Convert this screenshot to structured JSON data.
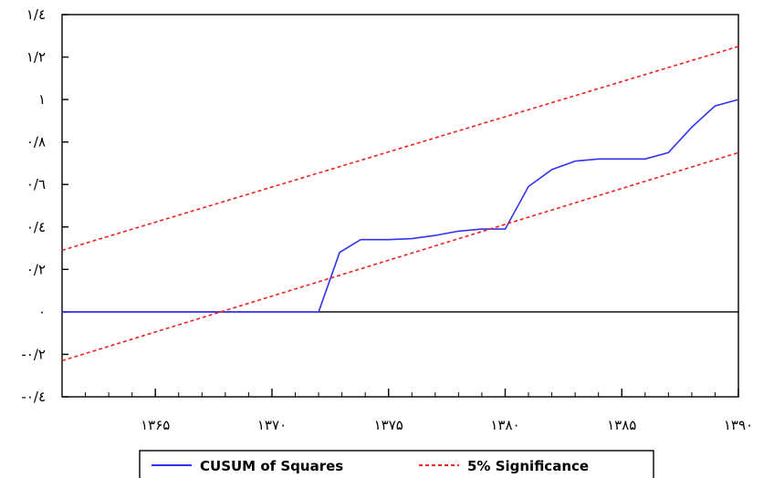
{
  "chart_data": {
    "type": "line",
    "title": "",
    "xlabel": "",
    "ylabel": "",
    "xlim": [
      1361,
      1390
    ],
    "ylim": [
      -0.4,
      1.4
    ],
    "x_ticks": [
      {
        "value": 1365,
        "label": "۱۳۶۵"
      },
      {
        "value": 1370,
        "label": "۱۳۷۰"
      },
      {
        "value": 1375,
        "label": "۱۳۷۵"
      },
      {
        "value": 1380,
        "label": "۱۳۸۰"
      },
      {
        "value": 1385,
        "label": "۱۳۸۵"
      },
      {
        "value": 1390,
        "label": "۱۳۹۰"
      }
    ],
    "y_ticks": [
      {
        "value": 1.4,
        "label": "۱/٤"
      },
      {
        "value": 1.2,
        "label": "۱/۲"
      },
      {
        "value": 1.0,
        "label": "۱"
      },
      {
        "value": 0.8,
        "label": "۰/۸"
      },
      {
        "value": 0.6,
        "label": "۰/٦"
      },
      {
        "value": 0.4,
        "label": "۰/٤"
      },
      {
        "value": 0.2,
        "label": "۰/۲"
      },
      {
        "value": 0.0,
        "label": "۰"
      },
      {
        "value": -0.2,
        "label": "-۰/۲"
      },
      {
        "value": -0.4,
        "label": "-۰/٤"
      }
    ],
    "zero_line": true,
    "grid": false,
    "legend_position": "bottom",
    "series": [
      {
        "name": "CUSUM of Squares",
        "color": "#3333ee",
        "style": "solid",
        "x": [
          1361,
          1372,
          1372.9,
          1373.8,
          1375,
          1376,
          1377,
          1378,
          1379,
          1380,
          1381,
          1382,
          1383,
          1384,
          1385,
          1386,
          1387,
          1388,
          1389,
          1390
        ],
        "y": [
          0,
          0,
          0.28,
          0.34,
          0.34,
          0.345,
          0.36,
          0.38,
          0.39,
          0.39,
          0.59,
          0.67,
          0.71,
          0.72,
          0.72,
          0.72,
          0.75,
          0.87,
          0.97,
          1.0
        ]
      },
      {
        "name": "5% Significance",
        "color": "#ee2222",
        "style": "dashed",
        "x": [
          1361,
          1390
        ],
        "y": [
          0.29,
          1.25
        ]
      },
      {
        "name": "",
        "color": "#ee2222",
        "style": "dashed",
        "x": [
          1361,
          1390
        ],
        "y": [
          -0.23,
          0.75
        ]
      }
    ]
  }
}
